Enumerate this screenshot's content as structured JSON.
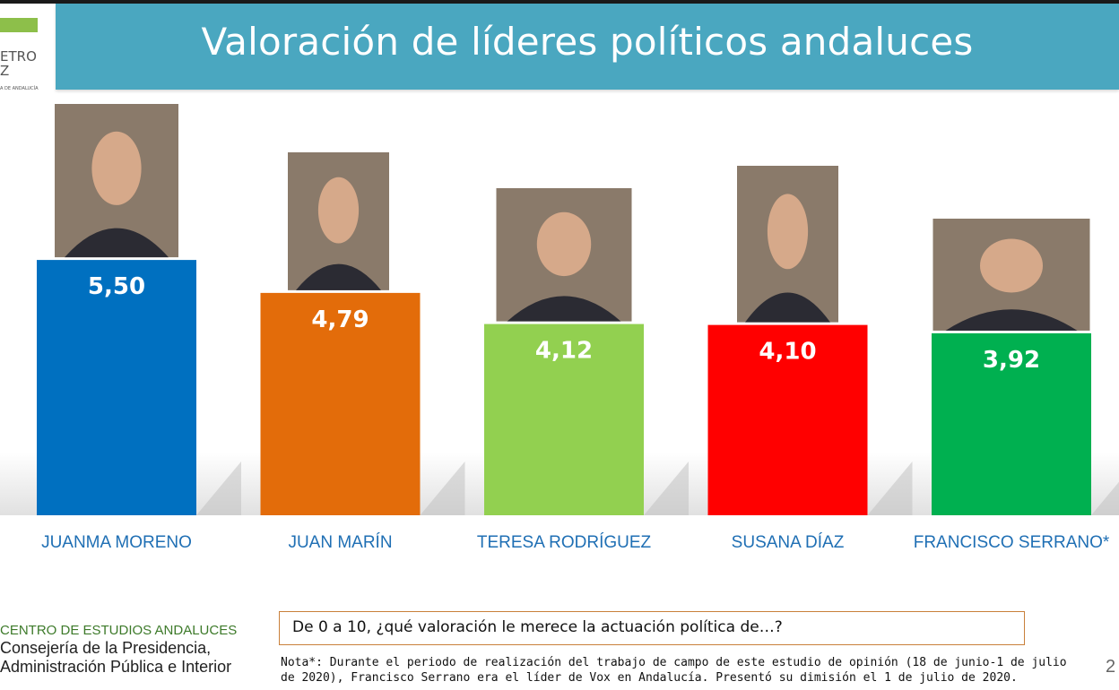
{
  "title": "Valoración de líderes políticos andaluces",
  "logo": {
    "line1": "ETRO",
    "line2": "Z",
    "line3": "A DE ANDALUCÍA"
  },
  "chart_data": {
    "type": "bar",
    "categories": [
      "JUANMA MORENO",
      "JUAN MARÍN",
      "TERESA RODRÍGUEZ",
      "SUSANA DÍAZ",
      "FRANCISCO SERRANO*"
    ],
    "values": [
      5.5,
      4.79,
      4.12,
      4.1,
      3.92
    ],
    "data_labels": [
      "5,50",
      "4,79",
      "4,12",
      "4,10",
      "3,92"
    ],
    "colors": [
      "#0070c0",
      "#e36c0a",
      "#92d050",
      "#ff0000",
      "#00b050"
    ],
    "label_color": "#1f6fb4",
    "photos": [
      "portrait-juanma-moreno",
      "portrait-juan-marin",
      "portrait-teresa-rodriguez",
      "portrait-susana-diaz",
      "portrait-francisco-serrano"
    ],
    "ylim": [
      0,
      10
    ],
    "grid": false,
    "legend": "none"
  },
  "footer": {
    "org_line1": "CENTRO DE ESTUDIOS ANDALUCES",
    "org_line2": "Consejería de la Presidencia,",
    "org_line3": "Administración Pública e Interior",
    "question": "De 0 a 10, ¿qué valoración le merece la actuación política de…?",
    "note_line1": "Nota*: Durante el periodo de realización del trabajo de campo de este estudio de opinión (18 de junio-1 de julio",
    "note_line2": "de 2020), Francisco Serrano era el líder de Vox en Andalucía. Presentó su dimisión el 1 de julio de 2020.",
    "page": "2"
  }
}
